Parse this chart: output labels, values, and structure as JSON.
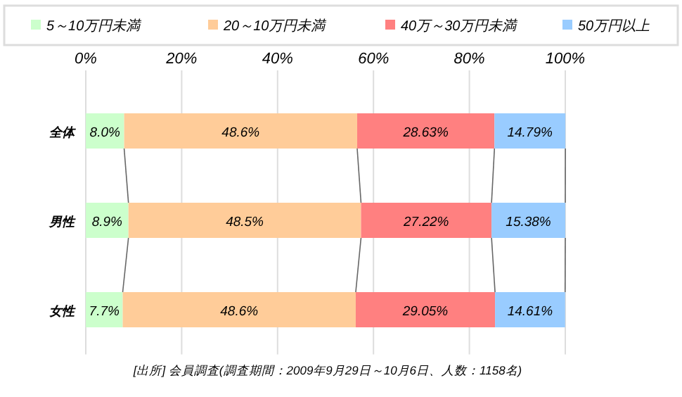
{
  "chart_data": {
    "type": "bar",
    "orientation": "horizontal",
    "stacked": true,
    "categories": [
      "全体",
      "男性",
      "女性"
    ],
    "series": [
      {
        "name": "5～10万円未満",
        "color": "#ccffcc",
        "values": [
          8.0,
          8.9,
          7.7
        ],
        "value_labels": [
          "8.0%",
          "8.9%",
          "7.7%"
        ]
      },
      {
        "name": "20～10万円未満",
        "color": "#ffcc99",
        "values": [
          48.6,
          48.5,
          48.6
        ],
        "value_labels": [
          "48.6%",
          "48.5%",
          "48.6%"
        ]
      },
      {
        "name": "40万～30万円未満",
        "color": "#ff8080",
        "values": [
          28.63,
          27.22,
          29.05
        ],
        "value_labels": [
          "28.63%",
          "27.22%",
          "29.05%"
        ]
      },
      {
        "name": "50万円以上",
        "color": "#99ccff",
        "values": [
          14.79,
          15.38,
          14.61
        ],
        "value_labels": [
          "14.79%",
          "15.38%",
          "14.61%"
        ]
      }
    ],
    "xlim": [
      0,
      100
    ],
    "xticks": [
      {
        "value": 0,
        "label": "0%"
      },
      {
        "value": 20,
        "label": "20%"
      },
      {
        "value": 40,
        "label": "40%"
      },
      {
        "value": 60,
        "label": "60%"
      },
      {
        "value": 80,
        "label": "80%"
      },
      {
        "value": 100,
        "label": "100%"
      }
    ],
    "grid": "x",
    "legend": "top",
    "annotations": [
      "[出所] 会員調査(調査期間：2009年9月29日～10月6日、人数：1158名)"
    ]
  }
}
